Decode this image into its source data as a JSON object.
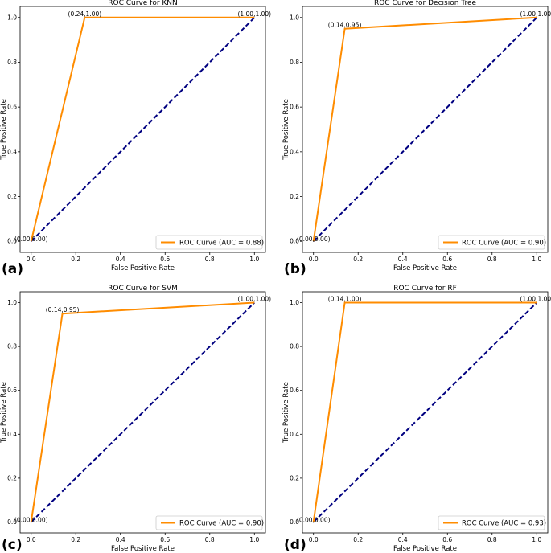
{
  "chart_data": [
    {
      "type": "line",
      "panel": "(a)",
      "title": "ROC Curve for KNN",
      "xlabel": "False Positive Rate",
      "ylabel": "True Positive Rate",
      "xlim": [
        0,
        1
      ],
      "ylim": [
        0,
        1
      ],
      "xticks": [
        "0.0",
        "0.2",
        "0.4",
        "0.6",
        "0.8",
        "1.0"
      ],
      "yticks": [
        "0.0",
        "0.2",
        "0.4",
        "0.6",
        "0.8",
        "1.0"
      ],
      "series": [
        {
          "name": "ROC Curve (AUC = 0.88)",
          "color": "#ff8c00",
          "style": "solid",
          "x": [
            0.0,
            0.24,
            1.0
          ],
          "y": [
            0.0,
            1.0,
            1.0
          ]
        },
        {
          "color": "#000080",
          "style": "dashed",
          "x": [
            0,
            1
          ],
          "y": [
            0,
            1
          ]
        }
      ],
      "point_labels": [
        "(0.00,0.00)",
        "(0.24,1.00)",
        "(1.00,1.00)"
      ],
      "legend_position": "lower right"
    },
    {
      "type": "line",
      "panel": "(b)",
      "title": "ROC Curve for Decision Tree",
      "xlabel": "False Positive Rate",
      "ylabel": "True Positive Rate",
      "xlim": [
        0,
        1
      ],
      "ylim": [
        0,
        1
      ],
      "xticks": [
        "0.0",
        "0.2",
        "0.4",
        "0.6",
        "0.8",
        "1.0"
      ],
      "yticks": [
        "0.0",
        "0.2",
        "0.4",
        "0.6",
        "0.8",
        "1.0"
      ],
      "series": [
        {
          "name": "ROC Curve (AUC = 0.90)",
          "color": "#ff8c00",
          "style": "solid",
          "x": [
            0.0,
            0.14,
            1.0
          ],
          "y": [
            0.0,
            0.95,
            1.0
          ]
        },
        {
          "color": "#000080",
          "style": "dashed",
          "x": [
            0,
            1
          ],
          "y": [
            0,
            1
          ]
        }
      ],
      "point_labels": [
        "(0.00,0.00)",
        "(0.14,0.95)",
        "(1.00,1.00)"
      ],
      "legend_position": "lower right"
    },
    {
      "type": "line",
      "panel": "(c)",
      "title": "ROC Curve for SVM",
      "xlabel": "False Positive Rate",
      "ylabel": "True Positive Rate",
      "xlim": [
        0,
        1
      ],
      "ylim": [
        0,
        1
      ],
      "xticks": [
        "0.0",
        "0.2",
        "0.4",
        "0.6",
        "0.8",
        "1.0"
      ],
      "yticks": [
        "0.0",
        "0.2",
        "0.4",
        "0.6",
        "0.8",
        "1.0"
      ],
      "series": [
        {
          "name": "ROC Curve (AUC = 0.90)",
          "color": "#ff8c00",
          "style": "solid",
          "x": [
            0.0,
            0.14,
            1.0
          ],
          "y": [
            0.0,
            0.95,
            1.0
          ]
        },
        {
          "color": "#000080",
          "style": "dashed",
          "x": [
            0,
            1
          ],
          "y": [
            0,
            1
          ]
        }
      ],
      "point_labels": [
        "(0.00,0.00)",
        "(0.14,0.95)",
        "(1.00,1.00)"
      ],
      "legend_position": "lower right"
    },
    {
      "type": "line",
      "panel": "(d)",
      "title": "ROC Curve for RF",
      "xlabel": "False Positive Rate",
      "ylabel": "True Positive Rate",
      "xlim": [
        0,
        1
      ],
      "ylim": [
        0,
        1
      ],
      "xticks": [
        "0.0",
        "0.2",
        "0.4",
        "0.6",
        "0.8",
        "1.0"
      ],
      "yticks": [
        "0.0",
        "0.2",
        "0.4",
        "0.6",
        "0.8",
        "1.0"
      ],
      "series": [
        {
          "name": "ROC Curve (AUC = 0.93)",
          "color": "#ff8c00",
          "style": "solid",
          "x": [
            0.0,
            0.14,
            1.0
          ],
          "y": [
            0.0,
            1.0,
            1.0
          ]
        },
        {
          "color": "#000080",
          "style": "dashed",
          "x": [
            0,
            1
          ],
          "y": [
            0,
            1
          ]
        }
      ],
      "point_labels": [
        "(0.00,0.00)",
        "(0.14,1.00)",
        "(1.00,1.00)"
      ],
      "legend_position": "lower right"
    }
  ]
}
